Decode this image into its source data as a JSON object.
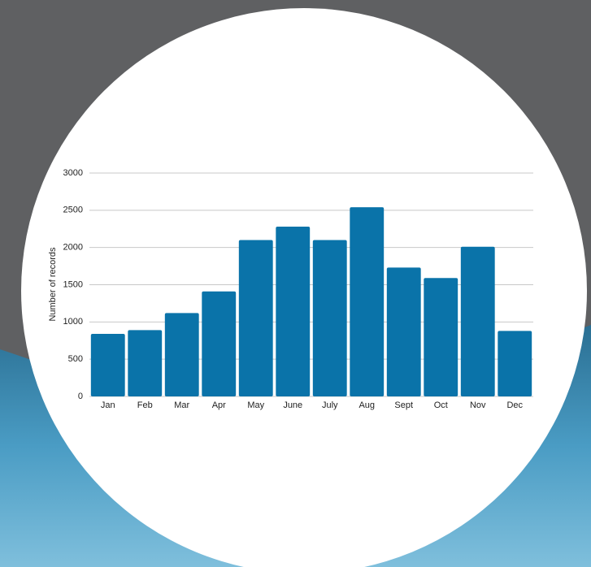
{
  "chart_data": {
    "type": "bar",
    "y_label": "Number of records",
    "categories": [
      "Jan",
      "Feb",
      "Mar",
      "Apr",
      "May",
      "June",
      "July",
      "Aug",
      "Sept",
      "Oct",
      "Nov",
      "Dec"
    ],
    "values": [
      840,
      890,
      1120,
      1410,
      2100,
      2280,
      2100,
      2540,
      1730,
      1590,
      2010,
      880
    ],
    "color": "#0a73a9",
    "ylim": [
      0,
      3000
    ],
    "yticks": [
      0,
      500,
      1000,
      1500,
      2000,
      2500,
      3000
    ],
    "grid": true
  }
}
